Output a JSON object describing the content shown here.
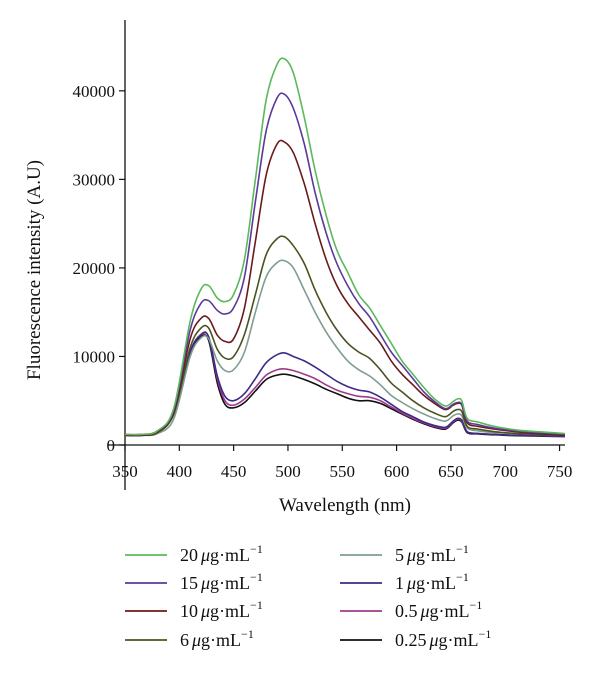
{
  "chart_data": {
    "type": "line",
    "title": "",
    "xlabel": "Wavelength (nm)",
    "ylabel": "Fluorescence intensity (A.U)",
    "xlim": [
      350,
      755
    ],
    "ylim": [
      0,
      48000
    ],
    "xticks": [
      350,
      400,
      450,
      500,
      550,
      600,
      650,
      700,
      750
    ],
    "xtick_labels": [
      "350",
      "400",
      "450",
      "500",
      "550",
      "600",
      "650",
      "700",
      "750"
    ],
    "yticks": [
      0,
      10000,
      20000,
      30000,
      40000
    ],
    "ytick_labels": [
      "0",
      "10000",
      "20000",
      "30000",
      "40000"
    ],
    "grid": false,
    "legend_position": "bottom",
    "series": [
      {
        "name": "20",
        "unit_prefix": "μ",
        "unit_main": "g·mL",
        "unit_exp": "−1",
        "color": "#5cb85c",
        "x": [
          350,
          365,
          380,
          395,
          410,
          420,
          427,
          435,
          442,
          450,
          460,
          470,
          480,
          490,
          497,
          505,
          515,
          525,
          535,
          545,
          555,
          565,
          575,
          585,
          595,
          605,
          615,
          625,
          635,
          645,
          652,
          656,
          660,
          665,
          675,
          690,
          710,
          730,
          755
        ],
        "y": [
          1200,
          1200,
          1600,
          4200,
          14000,
          17600,
          18000,
          16600,
          16200,
          17000,
          21000,
          30000,
          39000,
          43000,
          43600,
          42000,
          37000,
          31000,
          26000,
          22000,
          19500,
          17000,
          15500,
          13500,
          11500,
          9500,
          8000,
          6500,
          5200,
          4400,
          4900,
          5200,
          5000,
          3000,
          2600,
          2100,
          1700,
          1500,
          1300
        ]
      },
      {
        "name": "15",
        "unit_prefix": "μ",
        "unit_main": "g·mL",
        "unit_exp": "−1",
        "color": "#5b3a9a",
        "x": [
          350,
          365,
          380,
          395,
          410,
          420,
          427,
          435,
          442,
          450,
          460,
          470,
          480,
          490,
          497,
          505,
          515,
          525,
          535,
          545,
          555,
          565,
          575,
          585,
          595,
          605,
          615,
          625,
          635,
          645,
          652,
          656,
          660,
          665,
          675,
          690,
          710,
          730,
          755
        ],
        "y": [
          1200,
          1200,
          1600,
          4000,
          13000,
          16000,
          16300,
          15200,
          14800,
          15500,
          19000,
          27500,
          35500,
          39200,
          39600,
          38000,
          34000,
          28500,
          24000,
          20500,
          18000,
          16000,
          14500,
          12500,
          10500,
          9000,
          7500,
          6000,
          4900,
          4100,
          4600,
          4800,
          4600,
          2700,
          2300,
          1900,
          1600,
          1400,
          1200
        ]
      },
      {
        "name": "10",
        "unit_prefix": "μ",
        "unit_main": "g·mL",
        "unit_exp": "−1",
        "color": "#6b1a1a",
        "x": [
          350,
          365,
          380,
          395,
          410,
          420,
          427,
          435,
          442,
          450,
          460,
          470,
          480,
          490,
          497,
          505,
          515,
          525,
          535,
          545,
          555,
          565,
          575,
          585,
          595,
          605,
          615,
          625,
          635,
          645,
          652,
          656,
          660,
          665,
          675,
          690,
          710,
          730,
          755
        ],
        "y": [
          1100,
          1100,
          1500,
          3800,
          12000,
          14300,
          14300,
          12400,
          11700,
          12000,
          15500,
          23000,
          30500,
          34000,
          34200,
          33000,
          29500,
          25000,
          21000,
          18000,
          16000,
          14500,
          13000,
          11500,
          9500,
          8000,
          6800,
          5600,
          4700,
          4000,
          4500,
          4700,
          4500,
          2500,
          2100,
          1800,
          1500,
          1300,
          1100
        ]
      },
      {
        "name": "6",
        "unit_prefix": "μ",
        "unit_main": "g·mL",
        "unit_exp": "−1",
        "color": "#4a5320",
        "x": [
          350,
          365,
          380,
          395,
          410,
          420,
          427,
          435,
          442,
          450,
          460,
          470,
          480,
          490,
          497,
          505,
          515,
          525,
          535,
          545,
          555,
          565,
          575,
          585,
          595,
          605,
          615,
          625,
          635,
          645,
          652,
          656,
          660,
          665,
          675,
          690,
          710,
          730,
          755
        ],
        "y": [
          1100,
          1100,
          1400,
          3600,
          11000,
          13200,
          13200,
          10800,
          9800,
          10000,
          12500,
          17000,
          21500,
          23300,
          23500,
          22500,
          20500,
          17500,
          15000,
          13000,
          11500,
          10500,
          9800,
          8500,
          7000,
          6000,
          5000,
          4200,
          3600,
          3200,
          3800,
          4000,
          3800,
          2100,
          1800,
          1500,
          1300,
          1200,
          1100
        ]
      },
      {
        "name": "5",
        "unit_prefix": "μ",
        "unit_main": "g·mL",
        "unit_exp": "−1",
        "color": "#7f9d90",
        "x": [
          350,
          365,
          380,
          395,
          410,
          420,
          427,
          435,
          442,
          450,
          460,
          470,
          480,
          490,
          497,
          505,
          515,
          525,
          535,
          545,
          555,
          565,
          575,
          585,
          595,
          605,
          615,
          625,
          635,
          645,
          652,
          656,
          660,
          665,
          675,
          690,
          710,
          730,
          755
        ],
        "y": [
          1100,
          1100,
          1300,
          3000,
          10000,
          12100,
          12000,
          9500,
          8400,
          8500,
          10500,
          15000,
          19000,
          20600,
          20800,
          20000,
          17500,
          15000,
          12800,
          11000,
          9500,
          8500,
          7800,
          6800,
          5600,
          4800,
          4100,
          3500,
          3000,
          2700,
          3300,
          3500,
          3300,
          1900,
          1600,
          1400,
          1300,
          1200,
          1100
        ]
      },
      {
        "name": "1",
        "unit_prefix": "μ",
        "unit_main": "g·mL",
        "unit_exp": "−1",
        "color": "#3d2a8a",
        "x": [
          350,
          365,
          380,
          395,
          410,
          420,
          427,
          435,
          442,
          450,
          460,
          470,
          480,
          490,
          497,
          505,
          515,
          525,
          535,
          545,
          555,
          565,
          575,
          585,
          595,
          605,
          615,
          625,
          635,
          645,
          652,
          656,
          660,
          665,
          675,
          690,
          710,
          730,
          755
        ],
        "y": [
          1100,
          1100,
          1400,
          3600,
          10500,
          12400,
          12200,
          7800,
          5500,
          5000,
          5800,
          7500,
          9300,
          10200,
          10400,
          10000,
          9500,
          8800,
          8000,
          7200,
          6600,
          6200,
          6000,
          5400,
          4600,
          3800,
          3200,
          2600,
          2200,
          2000,
          2700,
          3000,
          2800,
          1500,
          1300,
          1200,
          1100,
          1050,
          1000
        ]
      },
      {
        "name": "0.5",
        "unit_prefix": "μ",
        "unit_main": "g·mL",
        "unit_exp": "−1",
        "color": "#a03a8a",
        "x": [
          350,
          365,
          380,
          395,
          410,
          420,
          427,
          435,
          442,
          450,
          460,
          470,
          480,
          490,
          497,
          505,
          515,
          525,
          535,
          545,
          555,
          565,
          575,
          585,
          595,
          605,
          615,
          625,
          635,
          645,
          652,
          656,
          660,
          665,
          675,
          690,
          710,
          730,
          755
        ],
        "y": [
          1100,
          1100,
          1400,
          3600,
          10500,
          12500,
          12200,
          7500,
          5000,
          4500,
          5200,
          6500,
          7900,
          8500,
          8600,
          8400,
          8000,
          7500,
          6800,
          6200,
          5800,
          5500,
          5400,
          5000,
          4300,
          3600,
          3000,
          2500,
          2100,
          1900,
          2600,
          2900,
          2700,
          1500,
          1300,
          1200,
          1100,
          1050,
          1000
        ]
      },
      {
        "name": "0.25",
        "unit_prefix": "μ",
        "unit_main": "g·mL",
        "unit_exp": "−1",
        "color": "#111111",
        "x": [
          350,
          365,
          380,
          395,
          410,
          420,
          427,
          435,
          442,
          450,
          460,
          470,
          480,
          490,
          497,
          505,
          515,
          525,
          535,
          545,
          555,
          565,
          575,
          585,
          595,
          605,
          615,
          625,
          635,
          645,
          652,
          656,
          660,
          665,
          675,
          690,
          710,
          730,
          755
        ],
        "y": [
          1100,
          1100,
          1400,
          3500,
          10200,
          12200,
          11800,
          7000,
          4600,
          4200,
          4800,
          6100,
          7400,
          7900,
          8000,
          7800,
          7400,
          6900,
          6300,
          5800,
          5300,
          5000,
          5000,
          4700,
          4100,
          3500,
          2900,
          2400,
          2000,
          1800,
          2500,
          2800,
          2600,
          1400,
          1250,
          1150,
          1050,
          1000,
          950
        ]
      }
    ]
  }
}
